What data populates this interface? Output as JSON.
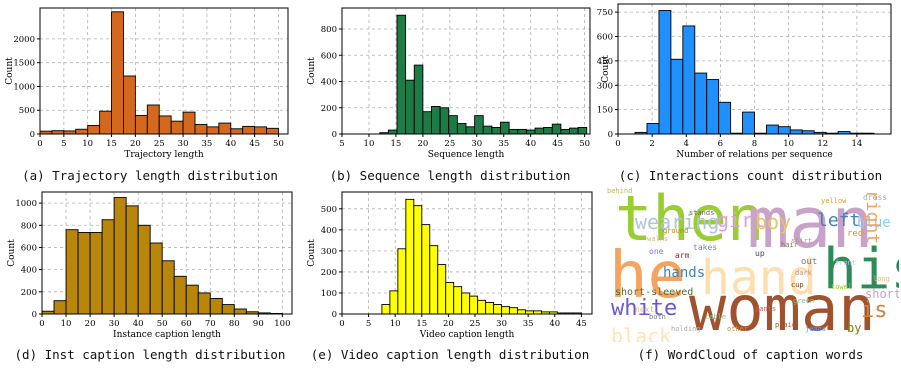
{
  "chart_data": [
    {
      "id": "a",
      "type": "bar",
      "color": "#d2691e",
      "caption": "(a) Trajectory length distribution",
      "xlabel": "Trajectory length",
      "ylabel": "Count",
      "xlim": [
        0,
        52
      ],
      "ylim": [
        0,
        2650
      ],
      "xticks": [
        0,
        5,
        10,
        15,
        20,
        25,
        30,
        35,
        40,
        45,
        50
      ],
      "yticks": [
        0,
        500,
        1000,
        1500,
        2000
      ],
      "bin_edges": [
        0,
        2.5,
        5,
        7.5,
        10,
        12.5,
        15,
        17.5,
        20,
        22.5,
        25,
        27.5,
        30,
        32.5,
        35,
        37.5,
        40,
        42.5,
        45,
        47.5,
        50
      ],
      "values": [
        60,
        70,
        65,
        100,
        180,
        480,
        2570,
        1220,
        390,
        610,
        380,
        270,
        460,
        200,
        150,
        230,
        110,
        160,
        150,
        120
      ]
    },
    {
      "id": "b",
      "type": "bar",
      "color": "#1e7b45",
      "caption": "(b) Sequence length distribution",
      "xlabel": "Sequence length",
      "ylabel": "Count",
      "xlim": [
        5,
        51
      ],
      "ylim": [
        0,
        960
      ],
      "xticks": [
        5,
        10,
        15,
        20,
        25,
        30,
        35,
        40,
        45,
        50
      ],
      "yticks": [
        0,
        200,
        400,
        600,
        800
      ],
      "bin_edges": [
        12,
        13.6,
        15.2,
        16.8,
        18.4,
        20,
        21.6,
        23.2,
        24.8,
        26.4,
        28,
        29.6,
        31.2,
        32.8,
        34.4,
        36,
        37.6,
        39.2,
        40.8,
        42.4,
        44,
        45.6,
        47.2,
        48.8,
        50.4
      ],
      "values": [
        10,
        30,
        905,
        410,
        525,
        170,
        210,
        200,
        140,
        80,
        55,
        140,
        60,
        50,
        90,
        35,
        35,
        30,
        45,
        50,
        75,
        35,
        45,
        50
      ]
    },
    {
      "id": "c",
      "type": "bar",
      "color": "#1e90ff",
      "caption": "(c) Interactions count distribution",
      "xlabel": "Number of relations per sequence",
      "ylabel": "Count",
      "xlim": [
        0,
        16
      ],
      "ylim": [
        0,
        800
      ],
      "xticks": [
        0,
        2,
        4,
        6,
        8,
        10,
        12,
        14
      ],
      "yticks": [
        0,
        150,
        300,
        450,
        600,
        750
      ],
      "bin_edges": [
        1,
        1.7,
        2.4,
        3.1,
        3.8,
        4.5,
        5.2,
        5.9,
        6.6,
        7.3,
        8,
        8.7,
        9.4,
        10.1,
        10.8,
        11.5,
        12.2,
        12.9,
        13.6,
        14.3,
        15
      ],
      "values": [
        10,
        65,
        760,
        460,
        665,
        375,
        335,
        195,
        5,
        135,
        5,
        55,
        45,
        25,
        20,
        10,
        5,
        15,
        5,
        5
      ]
    },
    {
      "id": "d",
      "type": "bar",
      "color": "#b8860b",
      "caption": "(d) Inst caption length distribution",
      "xlabel": "Instance caption length",
      "ylabel": "Count",
      "xlim": [
        0,
        104
      ],
      "ylim": [
        0,
        1100
      ],
      "xticks": [
        0,
        10,
        20,
        30,
        40,
        50,
        60,
        70,
        80,
        90,
        100
      ],
      "yticks": [
        0,
        200,
        400,
        600,
        800,
        1000
      ],
      "bin_edges": [
        0,
        5,
        10,
        15,
        20,
        25,
        30,
        35,
        40,
        45,
        50,
        55,
        60,
        65,
        70,
        75,
        80,
        85,
        90,
        95,
        100
      ],
      "values": [
        25,
        120,
        760,
        735,
        735,
        850,
        1050,
        975,
        800,
        640,
        480,
        340,
        260,
        190,
        140,
        85,
        45,
        20,
        10,
        5
      ]
    },
    {
      "id": "e",
      "type": "bar",
      "color": "#ffff00",
      "caption": "(e) Video caption length distribution",
      "xlabel": "Video caption length",
      "ylabel": "Count",
      "xlim": [
        0,
        47
      ],
      "ylim": [
        0,
        580
      ],
      "xticks": [
        0,
        5,
        10,
        15,
        20,
        25,
        30,
        35,
        40,
        45
      ],
      "yticks": [
        0,
        100,
        200,
        300,
        400,
        500
      ],
      "bin_edges": [
        7.5,
        9,
        10.5,
        12,
        13.5,
        15,
        16.5,
        18,
        19.5,
        21,
        22.5,
        24,
        25.5,
        27,
        28.5,
        30,
        31.5,
        33,
        34.5,
        36,
        37.5,
        39,
        40.5,
        42,
        43.5,
        45
      ],
      "values": [
        45,
        110,
        310,
        545,
        515,
        425,
        325,
        235,
        150,
        130,
        100,
        85,
        65,
        55,
        45,
        35,
        30,
        20,
        15,
        15,
        10,
        10,
        5,
        5,
        5
      ]
    }
  ],
  "wordcloud": {
    "caption": "(f) WordCloud of caption words",
    "words": [
      {
        "text": "then",
        "color": "#9acd32"
      },
      {
        "text": "man",
        "color": "#c8a2c8"
      },
      {
        "text": "woman",
        "color": "#a0522d"
      },
      {
        "text": "he",
        "color": "#f4a460"
      },
      {
        "text": "hand",
        "color": "#ffdead"
      },
      {
        "text": "his",
        "color": "#2e8b57"
      },
      {
        "text": "wearing",
        "color": "#b0c4de"
      },
      {
        "text": "girl",
        "color": "#dda0dd"
      },
      {
        "text": "boy",
        "color": "#e9c46a"
      },
      {
        "text": "left",
        "color": "#4682b4"
      },
      {
        "text": "blue",
        "color": "#87cefa"
      },
      {
        "text": "right",
        "color": "#f4a460"
      },
      {
        "text": "hands",
        "color": "#4682b4"
      },
      {
        "text": "white",
        "color": "#6a5acd"
      },
      {
        "text": "black",
        "color": "#ffe4b5"
      },
      {
        "text": "sleeves",
        "color": "#d2b48c"
      },
      {
        "text": "short-sleeved",
        "color": "#556b2f"
      },
      {
        "text": "short",
        "color": "#c8a2c8"
      },
      {
        "text": "is",
        "color": "#cd853f"
      },
      {
        "text": "dress",
        "color": "#a9a9a9"
      },
      {
        "text": "red",
        "color": "#ff8c00"
      },
      {
        "text": "yellow",
        "color": "#daa520"
      },
      {
        "text": "hair",
        "color": "#8b7355"
      },
      {
        "text": "shirt",
        "color": "#bc8f8f"
      },
      {
        "text": "green",
        "color": "#8fbc8f"
      },
      {
        "text": "pants",
        "color": "#cd5c5c"
      },
      {
        "text": "by",
        "color": "#808000"
      },
      {
        "text": "out",
        "color": "#708090"
      },
      {
        "text": "takes",
        "color": "#778899"
      },
      {
        "text": "next",
        "color": "#deb887"
      },
      {
        "text": "one",
        "color": "#9370db"
      },
      {
        "text": "arm",
        "color": "#b22222"
      },
      {
        "text": "up",
        "color": "#2f4f4f"
      },
      {
        "text": "table",
        "color": "#8fbc8f"
      },
      {
        "text": "plaid",
        "color": "#a0522d"
      },
      {
        "text": "jeans",
        "color": "#6495ed"
      },
      {
        "text": "stands",
        "color": "#696969"
      },
      {
        "text": "behind",
        "color": "#bdb76b"
      },
      {
        "text": "front",
        "color": "#b0c4de"
      },
      {
        "text": "dark",
        "color": "#bc8f8f"
      },
      {
        "text": "walks",
        "color": "#d2b48c"
      },
      {
        "text": "holding",
        "color": "#a9a9a9"
      },
      {
        "text": "other",
        "color": "#cd853f"
      },
      {
        "text": "both",
        "color": "#708090"
      },
      {
        "text": "long",
        "color": "#deb887"
      },
      {
        "text": "cup",
        "color": "#8b4513"
      },
      {
        "text": "towel",
        "color": "#9acd32"
      },
      {
        "text": "ground",
        "color": "#b8860b"
      }
    ]
  }
}
